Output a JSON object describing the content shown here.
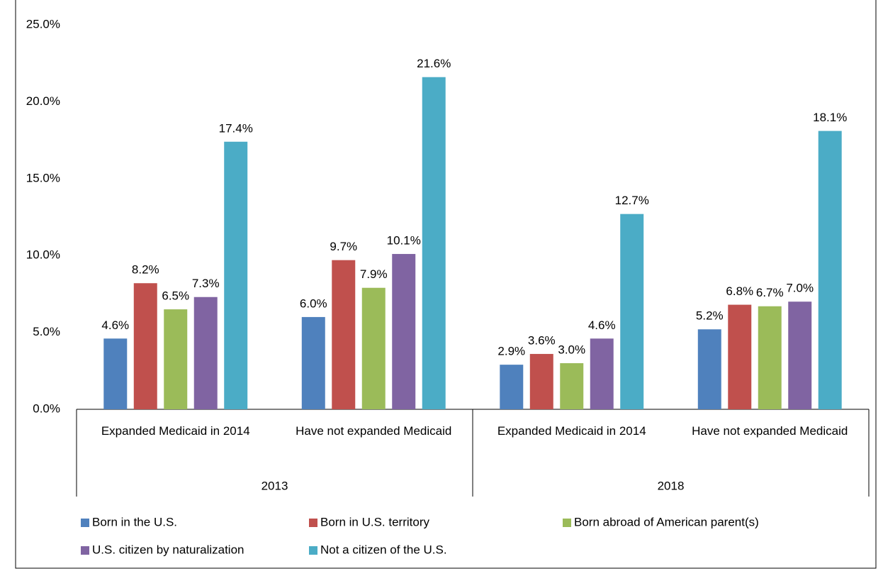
{
  "chart_data": {
    "type": "grouped-bar",
    "groups": [
      {
        "label": "2013",
        "categories": [
          "Expanded Medicaid in 2014",
          "Have not expanded Medicaid"
        ]
      },
      {
        "label": "2018",
        "categories": [
          "Expanded Medicaid in 2014",
          "Have not expanded Medicaid"
        ]
      }
    ],
    "series": [
      {
        "name": "Born in the U.S.",
        "color": "#4f81bd",
        "values": [
          4.6,
          6.0,
          2.9,
          5.2
        ],
        "value_labels": [
          "4.6%",
          "6.0%",
          "2.9%",
          "5.2%"
        ]
      },
      {
        "name": "Born in U.S. territory",
        "color": "#c0504d",
        "values": [
          8.2,
          9.7,
          3.6,
          6.8
        ],
        "value_labels": [
          "8.2%",
          "9.7%",
          "3.6%",
          "6.8%"
        ]
      },
      {
        "name": "Born abroad of American parent(s)",
        "color": "#9bbb59",
        "values": [
          6.5,
          7.9,
          3.0,
          6.7
        ],
        "value_labels": [
          "6.5%",
          "7.9%",
          "3.0%",
          "6.7%"
        ]
      },
      {
        "name": "U.S. citizen by naturalization",
        "color": "#8064a2",
        "values": [
          7.3,
          10.1,
          4.6,
          7.0
        ],
        "value_labels": [
          "7.3%",
          "10.1%",
          "4.6%",
          "7.0%"
        ]
      },
      {
        "name": "Not a citizen of the U.S.",
        "color": "#4bacc6",
        "values": [
          17.4,
          21.6,
          12.7,
          18.1
        ],
        "value_labels": [
          "17.4%",
          "21.6%",
          "12.7%",
          "18.1%"
        ]
      }
    ],
    "ylim": [
      0,
      25
    ],
    "yticks": [
      {
        "value": 0,
        "label": "0.0%"
      },
      {
        "value": 5,
        "label": "5.0%"
      },
      {
        "value": 10,
        "label": "10.0%"
      },
      {
        "value": 15,
        "label": "15.0%"
      },
      {
        "value": 20,
        "label": "20.0%"
      },
      {
        "value": 25,
        "label": "25.0%"
      }
    ],
    "legend": "bottom"
  }
}
